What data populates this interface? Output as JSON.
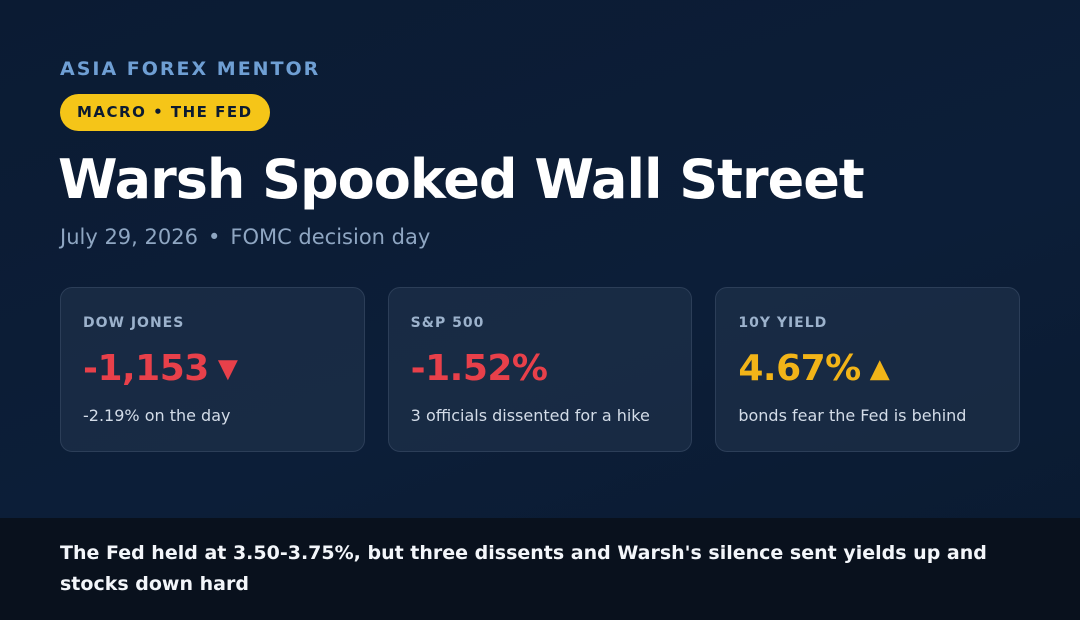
{
  "brand": "ASIA FOREX MENTOR",
  "tag": "MACRO • THE FED",
  "headline": "Warsh Spooked Wall Street",
  "subline": {
    "date": "July 29, 2026",
    "separator": "•",
    "event": "FOMC decision day"
  },
  "cards": [
    {
      "label": "DOW JONES",
      "value": "-1,153",
      "arrow": "▼",
      "arrow_icon": "down-triangle-icon",
      "value_color": "#e8404a",
      "note": "-2.19% on the day"
    },
    {
      "label": "S&P 500",
      "value": "-1.52%",
      "arrow": "",
      "value_color": "#e8404a",
      "note": "3 officials dissented for a hike"
    },
    {
      "label": "10Y YIELD",
      "value": "4.67%",
      "arrow": "▲",
      "arrow_icon": "up-triangle-icon",
      "value_color": "#f2b418",
      "note": "bonds fear the Fed is behind"
    }
  ],
  "footer": "The Fed held at 3.50-3.75%, but three dissents and Warsh's silence sent yields up and stocks down hard",
  "colors": {
    "accent": "#f5c518",
    "brand": "#6f9fd4",
    "negative": "#e8404a",
    "warning": "#f2b418",
    "background": "#0b1b33"
  }
}
